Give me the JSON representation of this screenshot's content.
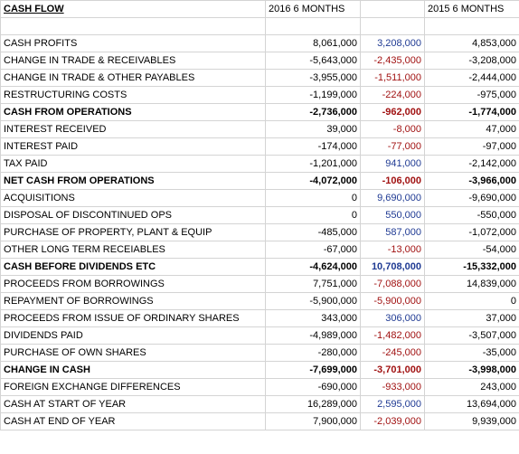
{
  "header": {
    "title": "CASH FLOW",
    "col1": "2016 6 MONTHS",
    "col3": "2015 6 MONTHS"
  },
  "rows": [
    {
      "label": "CASH PROFITS",
      "values": [
        "8,061,000",
        "3,208,000",
        "4,853,000"
      ]
    },
    {
      "label": "CHANGE IN TRADE & RECEIVABLES",
      "values": [
        "-5,643,000",
        "-2,435,000",
        "-3,208,000"
      ]
    },
    {
      "label": "CHANGE IN TRADE & OTHER PAYABLES",
      "values": [
        "-3,955,000",
        "-1,511,000",
        "-2,444,000"
      ]
    },
    {
      "label": "RESTRUCTURING COSTS",
      "values": [
        "-1,199,000",
        "-224,000",
        "-975,000"
      ]
    },
    {
      "label": "CASH FROM OPERATIONS",
      "values": [
        "-2,736,000",
        "-962,000",
        "-1,774,000"
      ],
      "bold": true
    },
    {
      "label": "INTEREST RECEIVED",
      "values": [
        "39,000",
        "-8,000",
        "47,000"
      ]
    },
    {
      "label": "INTEREST PAID",
      "values": [
        "-174,000",
        "-77,000",
        "-97,000"
      ]
    },
    {
      "label": "TAX PAID",
      "values": [
        "-1,201,000",
        "941,000",
        "-2,142,000"
      ]
    },
    {
      "label": "NET CASH FROM OPERATIONS",
      "values": [
        "-4,072,000",
        "-106,000",
        "-3,966,000"
      ],
      "bold": true
    },
    {
      "label": "ACQUISITIONS",
      "values": [
        "0",
        "9,690,000",
        "-9,690,000"
      ]
    },
    {
      "label": "DISPOSAL OF DISCONTINUED OPS",
      "values": [
        "0",
        "550,000",
        "-550,000"
      ]
    },
    {
      "label": "PURCHASE OF PROPERTY, PLANT & EQUIP",
      "values": [
        "-485,000",
        "587,000",
        "-1,072,000"
      ]
    },
    {
      "label": "OTHER LONG TERM RECEIABLES",
      "values": [
        "-67,000",
        "-13,000",
        "-54,000"
      ]
    },
    {
      "label": "CASH BEFORE DIVIDENDS ETC",
      "values": [
        "-4,624,000",
        "10,708,000",
        "-15,332,000"
      ],
      "bold": true
    },
    {
      "label": "PROCEEDS FROM BORROWINGS",
      "values": [
        "7,751,000",
        "-7,088,000",
        "14,839,000"
      ]
    },
    {
      "label": "REPAYMENT OF BORROWINGS",
      "values": [
        "-5,900,000",
        "-5,900,000",
        "0"
      ]
    },
    {
      "label": "PROCEEDS FROM ISSUE OF ORDINARY SHARES",
      "values": [
        "343,000",
        "306,000",
        "37,000"
      ]
    },
    {
      "label": "DIVIDENDS PAID",
      "values": [
        "-4,989,000",
        "-1,482,000",
        "-3,507,000"
      ]
    },
    {
      "label": "PURCHASE OF OWN SHARES",
      "values": [
        "-280,000",
        "-245,000",
        "-35,000"
      ]
    },
    {
      "label": "CHANGE IN CASH",
      "values": [
        "-7,699,000",
        "-3,701,000",
        "-3,998,000"
      ],
      "bold": true
    },
    {
      "label": "FOREIGN EXCHANGE DIFFERENCES",
      "values": [
        "-690,000",
        "-933,000",
        "243,000"
      ]
    },
    {
      "label": "CASH AT START OF YEAR",
      "values": [
        "16,289,000",
        "2,595,000",
        "13,694,000"
      ]
    },
    {
      "label": "CASH AT END OF YEAR",
      "values": [
        "7,900,000",
        "-2,039,000",
        "9,939,000"
      ]
    }
  ]
}
